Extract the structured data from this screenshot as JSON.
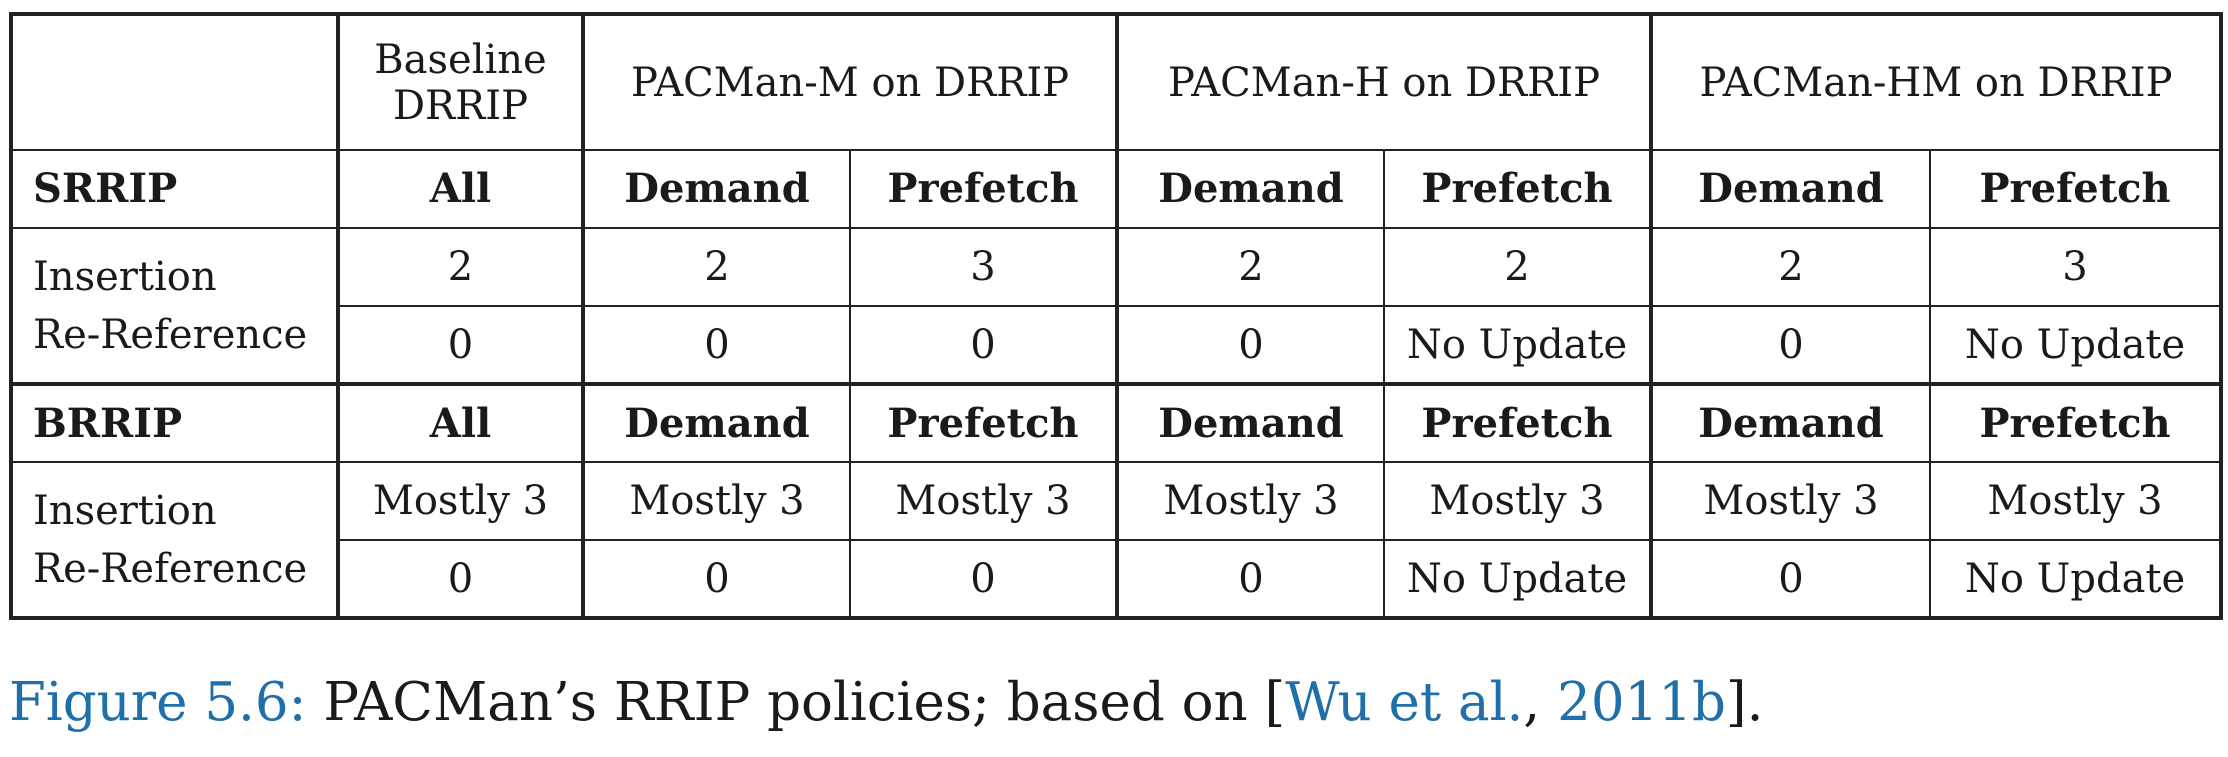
{
  "table": {
    "headers": {
      "corner": "",
      "baseline": "Baseline DRRIP",
      "pacman_m": "PACMan-M on DRRIP",
      "pacman_h": "PACMan-H on DRRIP",
      "pacman_hm": "PACMan-HM on DRRIP"
    },
    "sections": [
      {
        "name": "SRRIP",
        "subheaders": [
          "All",
          "Demand",
          "Prefetch",
          "Demand",
          "Prefetch",
          "Demand",
          "Prefetch"
        ],
        "row_labels": [
          "Insertion",
          "Re-Reference"
        ],
        "rows": [
          [
            "2",
            "2",
            "3",
            "2",
            "2",
            "2",
            "3"
          ],
          [
            "0",
            "0",
            "0",
            "0",
            "No Update",
            "0",
            "No Update"
          ]
        ]
      },
      {
        "name": "BRRIP",
        "subheaders": [
          "All",
          "Demand",
          "Prefetch",
          "Demand",
          "Prefetch",
          "Demand",
          "Prefetch"
        ],
        "row_labels": [
          "Insertion",
          "Re-Reference"
        ],
        "rows": [
          [
            "Mostly 3",
            "Mostly 3",
            "Mostly 3",
            "Mostly 3",
            "Mostly 3",
            "Mostly 3",
            "Mostly 3"
          ],
          [
            "0",
            "0",
            "0",
            "0",
            "No Update",
            "0",
            "No Update"
          ]
        ]
      }
    ]
  },
  "caption": {
    "label": "Figure 5.6:",
    "text": " PACMan’s RRIP policies; based on [",
    "cite_authors": "Wu et al.",
    "cite_sep": ", ",
    "cite_year": "2011b",
    "text_end": "]."
  }
}
